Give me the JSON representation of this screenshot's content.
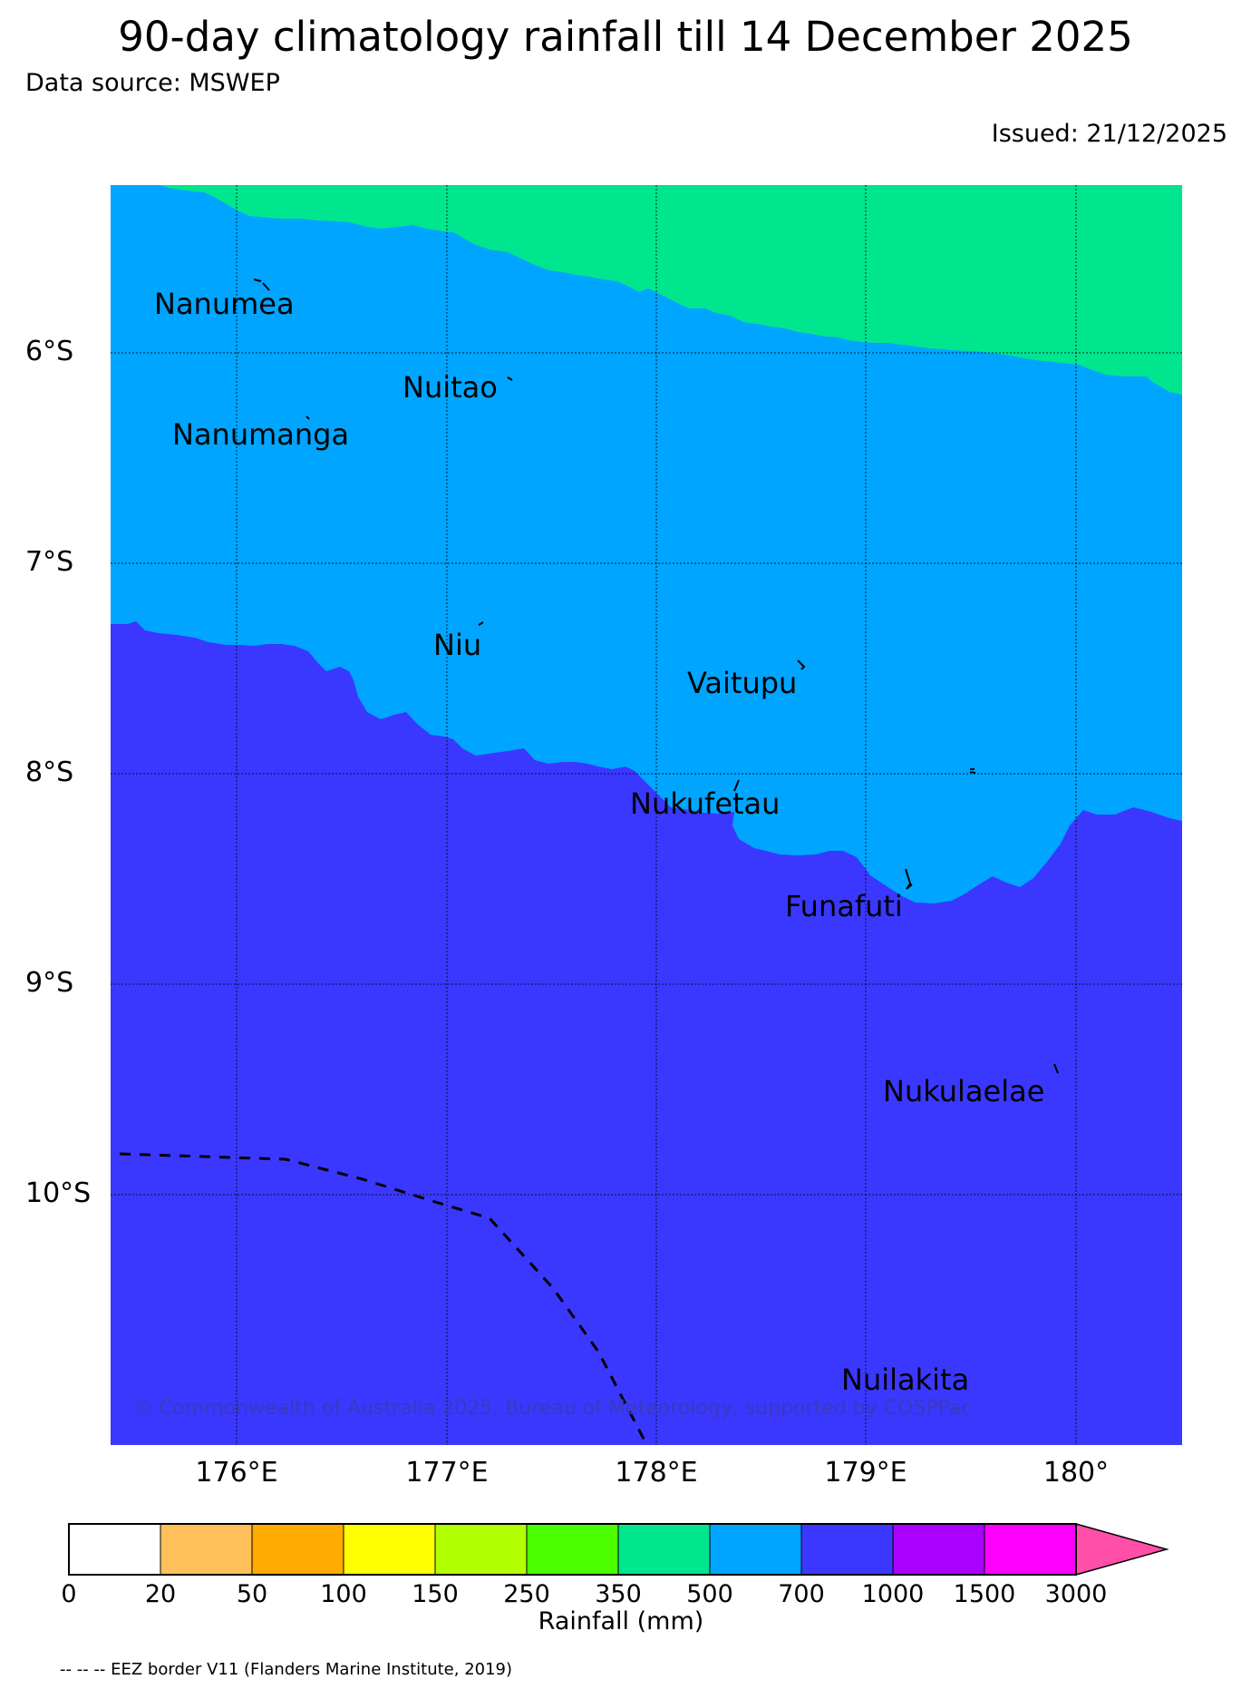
{
  "title": "90-day climatology rainfall till 14 December 2025",
  "data_source": "Data source: MSWEP",
  "issued": "Issued: 21/12/2025",
  "latitude_labels": [
    "6°S",
    "7°S",
    "8°S",
    "9°S",
    "10°S"
  ],
  "longitude_labels": [
    "176°E",
    "177°E",
    "178°E",
    "179°E",
    "180°"
  ],
  "islands": [
    {
      "name": "Nanumea"
    },
    {
      "name": "Nuitao"
    },
    {
      "name": "Nanumanga"
    },
    {
      "name": "Niu"
    },
    {
      "name": "Vaitupu"
    },
    {
      "name": "Nukufetau"
    },
    {
      "name": "Funafuti"
    },
    {
      "name": "Nukulaelae"
    },
    {
      "name": "Nuilakita"
    }
  ],
  "copyright": "© Commonwealth of Australia 2025, Bureau of Meteorology, supported by COSPPac",
  "colorbar": {
    "title": "Rainfall (mm)",
    "ticks": [
      "0",
      "20",
      "50",
      "100",
      "150",
      "250",
      "350",
      "500",
      "700",
      "1000",
      "1500",
      "3000"
    ],
    "colors": [
      "#ffffff",
      "#ffbf5a",
      "#ffab00",
      "#ffff00",
      "#b2ff00",
      "#4cff00",
      "#00e68e",
      "#00a5ff",
      "#3a38ff",
      "#a900ff",
      "#ff00ff",
      "#ff4fa8"
    ]
  },
  "region_colors": {
    "zone_350_500": "#00e68e",
    "zone_500_700": "#00a5ff",
    "zone_700_1000": "#3a38ff"
  },
  "footnote": "-- -- -- EEZ border V11 (Flanders Marine Institute, 2019)"
}
